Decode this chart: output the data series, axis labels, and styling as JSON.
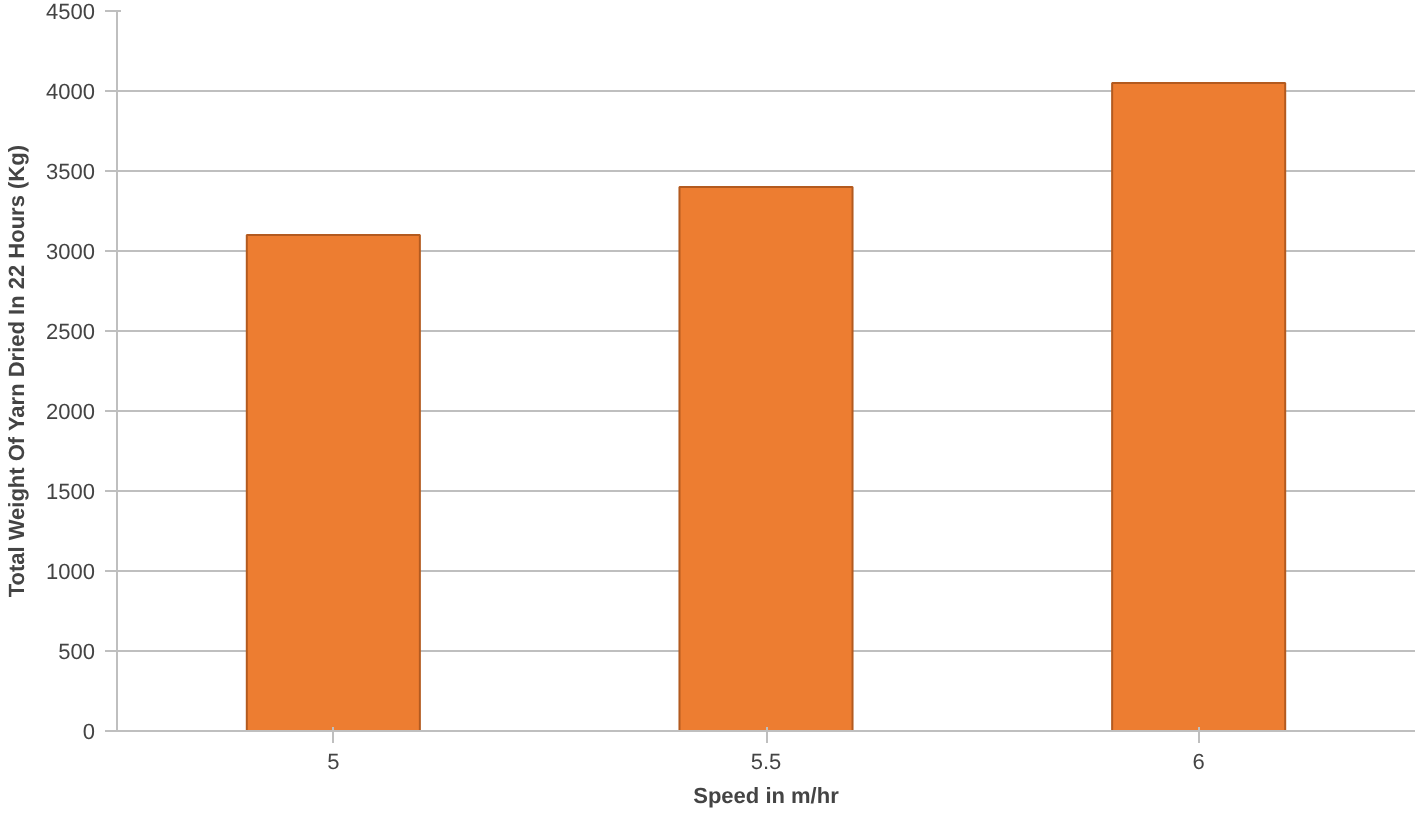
{
  "chart_data": {
    "type": "bar",
    "xlabel": "Speed in m/hr",
    "ylabel": "Total Weight Of Yarn Dried In 22 Hours (Kg)",
    "categories": [
      "5",
      "5.5",
      "6"
    ],
    "values": [
      3100,
      3400,
      4050
    ],
    "color": "#ed7d31",
    "ylim": [
      0,
      4500
    ],
    "yticks": [
      0,
      500,
      1000,
      1500,
      2000,
      2500,
      3000,
      3500,
      4000,
      4500
    ],
    "grid": "y"
  }
}
